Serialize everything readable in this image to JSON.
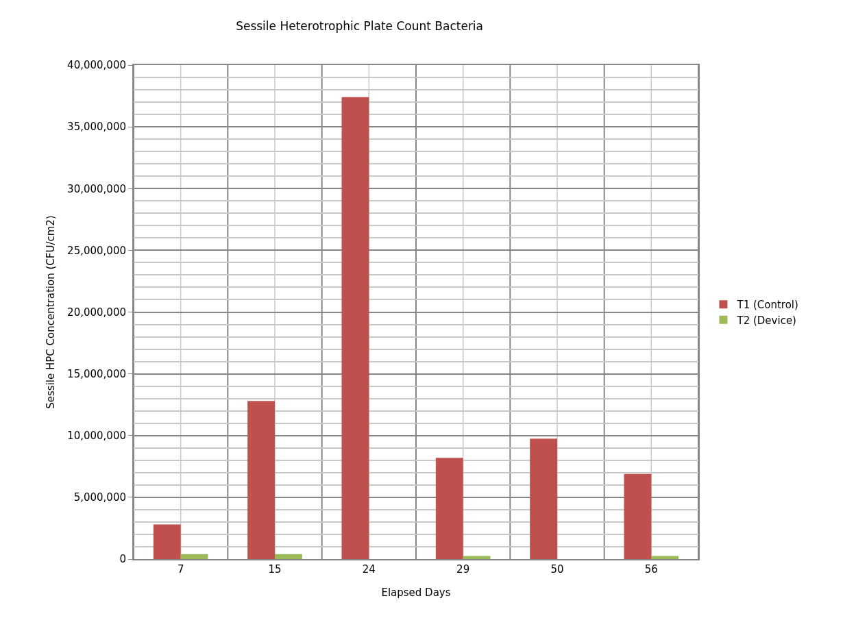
{
  "chart_data": {
    "type": "bar",
    "title": "Sessile Heterotrophic Plate Count Bacteria",
    "xlabel": "Elapsed Days",
    "ylabel": "Sessile HPC Concentration (CFU/cm2)",
    "categories": [
      "7",
      "15",
      "24",
      "29",
      "50",
      "56"
    ],
    "series": [
      {
        "name": "T1 (Control)",
        "color": "#c0504d",
        "values": [
          2800000,
          12800000,
          37400000,
          8200000,
          9750000,
          6900000
        ]
      },
      {
        "name": "T2 (Device)",
        "color": "#9bbb59",
        "values": [
          400000,
          400000,
          0,
          250000,
          0,
          250000
        ]
      }
    ],
    "ylim": [
      0,
      40000000
    ],
    "yticks": [
      {
        "value": 0,
        "label": "0"
      },
      {
        "value": 5000000,
        "label": "5,000,000"
      },
      {
        "value": 10000000,
        "label": "10,000,000"
      },
      {
        "value": 15000000,
        "label": "15,000,000"
      },
      {
        "value": 20000000,
        "label": "20,000,000"
      },
      {
        "value": 25000000,
        "label": "25,000,000"
      },
      {
        "value": 30000000,
        "label": "30,000,000"
      },
      {
        "value": 35000000,
        "label": "35,000,000"
      },
      {
        "value": 40000000,
        "label": "40,000,000"
      }
    ],
    "grid": true,
    "legend": "right"
  }
}
